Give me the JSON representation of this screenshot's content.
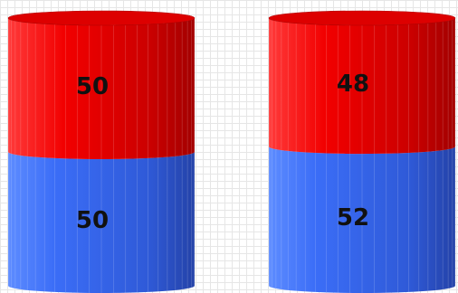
{
  "chart_data": {
    "type": "bar",
    "stacked": true,
    "style": "3d-cylinder",
    "categories": [
      "",
      ""
    ],
    "series": [
      {
        "values": [
          50,
          52
        ],
        "color": "#2f63f0"
      },
      {
        "values": [
          50,
          48
        ],
        "color": "#e00000"
      }
    ],
    "ylim": [
      0,
      100
    ],
    "grid": true,
    "legend": "none"
  }
}
